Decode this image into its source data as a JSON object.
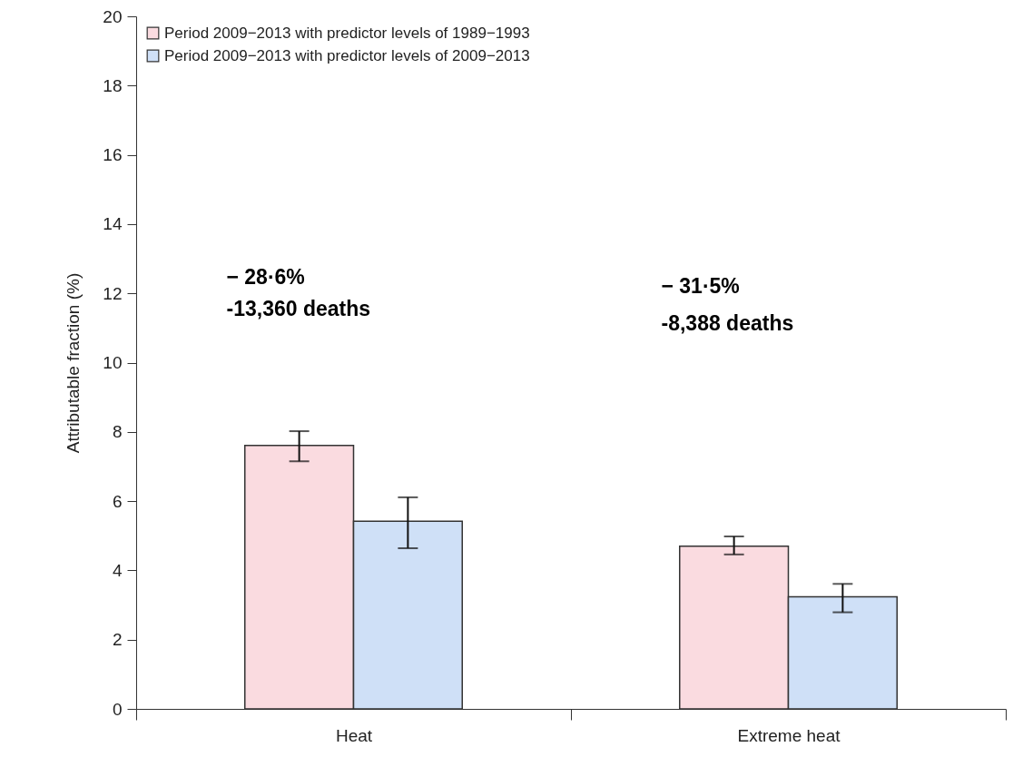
{
  "chart_data": {
    "type": "bar",
    "ylabel": "Attributable fraction (%)",
    "categories": [
      "Heat",
      "Extreme heat"
    ],
    "series": [
      {
        "name": "Period 2009−2013 with predictor levels of 1989−1993",
        "color": "#fadbe0",
        "values": [
          7.61,
          4.7
        ],
        "errors": [
          [
            7.15,
            8.02
          ],
          [
            4.46,
            4.98
          ]
        ]
      },
      {
        "name": "Period 2009−2013 with predictor levels of 2009−2013",
        "color": "#cfe0f7",
        "values": [
          5.42,
          3.24
        ],
        "errors": [
          [
            4.64,
            6.11
          ],
          [
            2.79,
            3.61
          ]
        ]
      }
    ],
    "ylim": [
      0,
      20
    ],
    "yticks": [
      0,
      2,
      4,
      6,
      8,
      10,
      12,
      14,
      16,
      18,
      20
    ],
    "legend": "top left",
    "annotations": [
      "− 28·6%",
      "-13,360 deaths",
      "− 31·5%",
      "-8,388 deaths"
    ]
  }
}
